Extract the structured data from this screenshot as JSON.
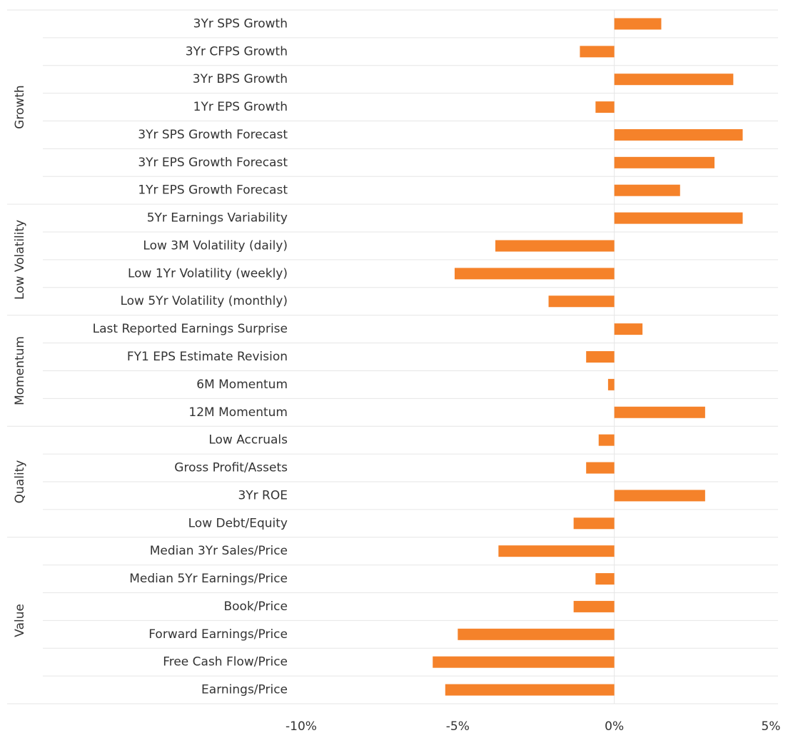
{
  "chart_data": {
    "type": "bar",
    "orientation": "horizontal",
    "color": "#f5822a",
    "groups": [
      {
        "label": "Growth",
        "categories": [
          "3Yr SPS Growth",
          "3Yr CFPS Growth",
          "3Yr BPS Growth",
          "1Yr EPS Growth",
          "3Yr SPS Growth Forecast",
          "3Yr EPS Growth Forecast",
          "1Yr EPS Growth Forecast"
        ],
        "values": [
          1.5,
          -1.1,
          3.8,
          -0.6,
          4.1,
          3.2,
          2.1
        ]
      },
      {
        "label": "Low Volatility",
        "categories": [
          "5Yr Earnings Variability",
          "Low 3M Volatility (daily)",
          "Low 1Yr Volatility (weekly)",
          "Low 5Yr Volatility (monthly)"
        ],
        "values": [
          4.1,
          -3.8,
          -5.1,
          -2.1
        ]
      },
      {
        "label": "Momentum",
        "categories": [
          "Last Reported Earnings Surprise",
          "FY1 EPS Estimate Revision",
          "6M Momentum",
          "12M Momentum"
        ],
        "values": [
          0.9,
          -0.9,
          -0.2,
          2.9
        ]
      },
      {
        "label": "Quality",
        "categories": [
          "Low Accruals",
          "Gross Profit/Assets",
          "3Yr ROE",
          "Low Debt/Equity"
        ],
        "values": [
          -0.5,
          -0.9,
          2.9,
          -1.3
        ]
      },
      {
        "label": "Value",
        "categories": [
          "Median 3Yr Sales/Price",
          "Median 5Yr Earnings/Price",
          "Book/Price",
          "Forward Earnings/Price",
          "Free Cash Flow/Price",
          "Earnings/Price"
        ],
        "values": [
          -3.7,
          -0.6,
          -1.3,
          -5.0,
          -5.8,
          -5.4
        ]
      }
    ],
    "xlim": [
      -10,
      5
    ],
    "xticks": [
      {
        "value": -10,
        "label": "-10%"
      },
      {
        "value": -5,
        "label": "-5%"
      },
      {
        "value": 0,
        "label": "0%"
      },
      {
        "value": 5,
        "label": "5%"
      }
    ],
    "zero_line": true
  }
}
